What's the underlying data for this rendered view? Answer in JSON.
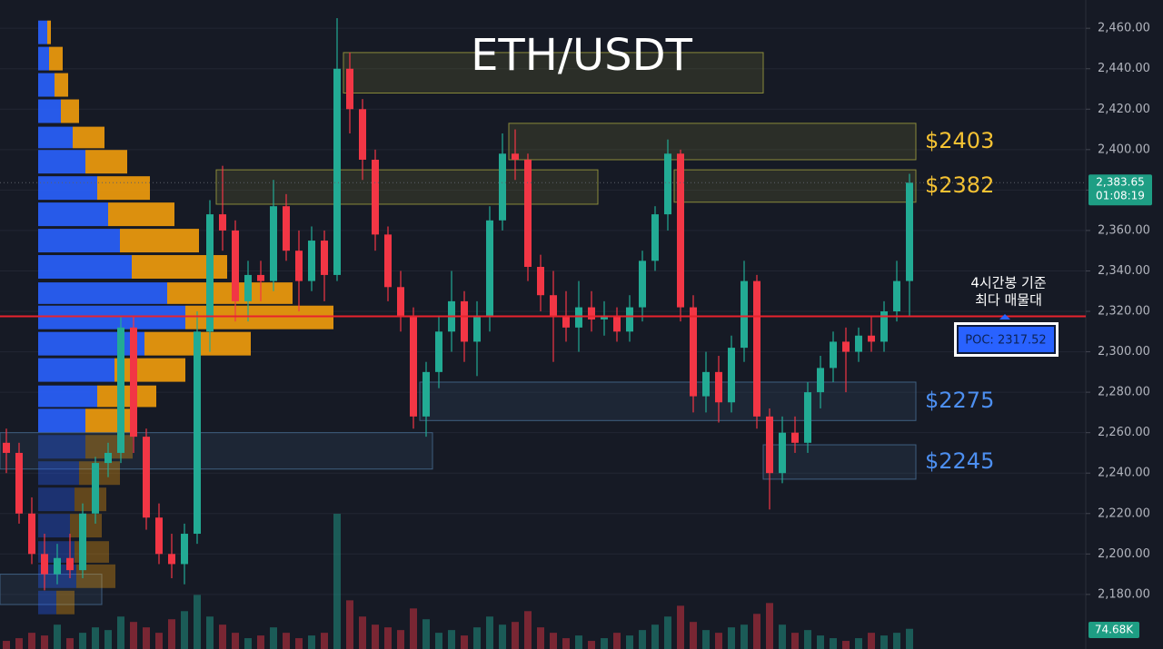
{
  "chart_data": {
    "type": "candlestick",
    "title": "ETH/USDT",
    "up_color": "#22ab94",
    "down_color": "#f23645",
    "ylim": [
      2153,
      2474
    ],
    "yticks": [
      {
        "value": 2180,
        "label": "2,180.00"
      },
      {
        "value": 2200,
        "label": "2,200.00"
      },
      {
        "value": 2220,
        "label": "2,220.00"
      },
      {
        "value": 2240,
        "label": "2,240.00"
      },
      {
        "value": 2260,
        "label": "2,260.00"
      },
      {
        "value": 2280,
        "label": "2,280.00"
      },
      {
        "value": 2300,
        "label": "2,300.00"
      },
      {
        "value": 2320,
        "label": "2,320.00"
      },
      {
        "value": 2340,
        "label": "2,340.00"
      },
      {
        "value": 2360,
        "label": "2,360.00"
      },
      {
        "value": 2380,
        "label": "2,380.00"
      },
      {
        "value": 2400,
        "label": "2,400.00"
      },
      {
        "value": 2420,
        "label": "2,420.00"
      },
      {
        "value": 2440,
        "label": "2,440.00"
      },
      {
        "value": 2460,
        "label": "2,460.00"
      }
    ],
    "grid": true,
    "candles": [
      [
        2255,
        2262,
        2240,
        2250
      ],
      [
        2250,
        2255,
        2215,
        2220
      ],
      [
        2220,
        2228,
        2195,
        2200
      ],
      [
        2200,
        2210,
        2182,
        2190
      ],
      [
        2190,
        2205,
        2185,
        2198
      ],
      [
        2198,
        2210,
        2188,
        2192
      ],
      [
        2192,
        2225,
        2188,
        2220
      ],
      [
        2220,
        2248,
        2215,
        2245
      ],
      [
        2245,
        2255,
        2238,
        2250
      ],
      [
        2250,
        2318,
        2245,
        2312
      ],
      [
        2312,
        2318,
        2250,
        2258
      ],
      [
        2258,
        2262,
        2212,
        2218
      ],
      [
        2218,
        2225,
        2195,
        2200
      ],
      [
        2200,
        2210,
        2188,
        2195
      ],
      [
        2195,
        2215,
        2185,
        2210
      ],
      [
        2210,
        2320,
        2205,
        2310
      ],
      [
        2310,
        2375,
        2300,
        2368
      ],
      [
        2368,
        2392,
        2350,
        2360
      ],
      [
        2360,
        2365,
        2315,
        2325
      ],
      [
        2325,
        2345,
        2315,
        2338
      ],
      [
        2338,
        2345,
        2325,
        2335
      ],
      [
        2335,
        2385,
        2330,
        2372
      ],
      [
        2372,
        2378,
        2345,
        2350
      ],
      [
        2350,
        2360,
        2320,
        2335
      ],
      [
        2335,
        2362,
        2330,
        2355
      ],
      [
        2355,
        2360,
        2325,
        2338
      ],
      [
        2338,
        2465,
        2335,
        2440
      ],
      [
        2440,
        2448,
        2408,
        2420
      ],
      [
        2420,
        2425,
        2385,
        2395
      ],
      [
        2395,
        2400,
        2350,
        2358
      ],
      [
        2358,
        2362,
        2325,
        2332
      ],
      [
        2332,
        2340,
        2310,
        2318
      ],
      [
        2318,
        2322,
        2262,
        2268
      ],
      [
        2268,
        2295,
        2258,
        2290
      ],
      [
        2290,
        2318,
        2282,
        2310
      ],
      [
        2310,
        2340,
        2300,
        2325
      ],
      [
        2325,
        2330,
        2295,
        2305
      ],
      [
        2305,
        2325,
        2288,
        2318
      ],
      [
        2318,
        2372,
        2310,
        2365
      ],
      [
        2365,
        2408,
        2360,
        2398
      ],
      [
        2398,
        2410,
        2385,
        2395
      ],
      [
        2395,
        2398,
        2335,
        2342
      ],
      [
        2342,
        2348,
        2320,
        2328
      ],
      [
        2328,
        2340,
        2295,
        2318
      ],
      [
        2318,
        2330,
        2305,
        2312
      ],
      [
        2312,
        2335,
        2300,
        2322
      ],
      [
        2322,
        2330,
        2310,
        2316
      ],
      [
        2316,
        2325,
        2308,
        2318
      ],
      [
        2318,
        2322,
        2305,
        2310
      ],
      [
        2310,
        2328,
        2305,
        2322
      ],
      [
        2322,
        2350,
        2315,
        2345
      ],
      [
        2345,
        2372,
        2340,
        2368
      ],
      [
        2368,
        2405,
        2360,
        2398
      ],
      [
        2398,
        2400,
        2315,
        2322
      ],
      [
        2322,
        2328,
        2270,
        2278
      ],
      [
        2278,
        2300,
        2270,
        2290
      ],
      [
        2290,
        2298,
        2265,
        2275
      ],
      [
        2275,
        2308,
        2270,
        2302
      ],
      [
        2302,
        2345,
        2295,
        2335
      ],
      [
        2335,
        2338,
        2262,
        2268
      ],
      [
        2268,
        2272,
        2222,
        2240
      ],
      [
        2240,
        2268,
        2235,
        2260
      ],
      [
        2260,
        2268,
        2250,
        2255
      ],
      [
        2255,
        2285,
        2250,
        2280
      ],
      [
        2280,
        2298,
        2272,
        2292
      ],
      [
        2292,
        2310,
        2285,
        2305
      ],
      [
        2305,
        2312,
        2280,
        2300
      ],
      [
        2300,
        2312,
        2295,
        2308
      ],
      [
        2308,
        2318,
        2300,
        2305
      ],
      [
        2305,
        2325,
        2300,
        2320
      ],
      [
        2320,
        2345,
        2315,
        2335
      ],
      [
        2335,
        2388,
        2318,
        2383.65
      ]
    ],
    "volume": {
      "ylim": [
        0,
        2400
      ],
      "values": [
        30,
        40,
        60,
        50,
        90,
        40,
        60,
        80,
        70,
        120,
        100,
        80,
        60,
        110,
        140,
        200,
        120,
        90,
        60,
        40,
        50,
        80,
        60,
        40,
        50,
        60,
        500,
        180,
        120,
        90,
        80,
        70,
        150,
        110,
        60,
        70,
        50,
        80,
        120,
        90,
        100,
        140,
        80,
        60,
        40,
        50,
        30,
        40,
        60,
        50,
        70,
        90,
        120,
        160,
        100,
        70,
        60,
        80,
        90,
        130,
        170,
        90,
        60,
        70,
        50,
        40,
        30,
        40,
        60,
        50,
        60,
        74.68
      ],
      "last_label": "74.68K"
    },
    "volume_profile": {
      "buy_color": "#2962ff",
      "sell_color": "#f29d0c",
      "prices": [
        2458,
        2445,
        2432,
        2419,
        2406,
        2394,
        2381,
        2368,
        2355,
        2342,
        2329,
        2317,
        2304,
        2291,
        2278,
        2266,
        2253,
        2240,
        2227,
        2214,
        2201,
        2189,
        2176
      ],
      "buy": [
        10,
        12,
        18,
        25,
        38,
        52,
        65,
        77,
        90,
        103,
        142,
        162,
        117,
        84,
        65,
        52,
        52,
        45,
        40,
        35,
        40,
        42,
        20
      ],
      "sell": [
        4,
        15,
        15,
        20,
        35,
        46,
        58,
        73,
        87,
        105,
        138,
        163,
        117,
        78,
        65,
        52,
        52,
        45,
        35,
        35,
        38,
        43,
        20
      ]
    },
    "zones": [
      {
        "low": 2428,
        "high": 2448,
        "start": 27,
        "end": 59,
        "color": "#8a8a3a"
      },
      {
        "low": 2395,
        "high": 2413,
        "start": 40,
        "end": 71,
        "color": "#8a8a3a",
        "label": "$2403",
        "label_color": "#f5c233"
      },
      {
        "low": 2373,
        "high": 2390,
        "start": 17,
        "end": 46,
        "color": "#8a8a3a"
      },
      {
        "low": 2374,
        "high": 2390,
        "start": 53,
        "end": 71,
        "color": "#8a8a3a",
        "label": "$2382",
        "label_color": "#f5c233"
      },
      {
        "low": 2266,
        "high": 2285,
        "start": 33,
        "end": 71,
        "color": "#3f5f80",
        "label": "$2275",
        "label_color": "#4d8ff0"
      },
      {
        "low": 2237,
        "high": 2254,
        "start": 60,
        "end": 71,
        "color": "#3f5f80",
        "label": "$2245",
        "label_color": "#4d8ff0"
      },
      {
        "low": 2242,
        "high": 2260,
        "start": 0,
        "end": 33,
        "color": "#3f5f80"
      },
      {
        "low": 2175,
        "high": 2190,
        "start": 0,
        "end": 7,
        "color": "#3f5f80"
      }
    ],
    "current_price": {
      "value": 2383.65,
      "label": "2,383.65",
      "countdown": "01:08:19",
      "color": "#1e9e84"
    },
    "poc": {
      "value": 2317.52,
      "label": "POC: 2317.52",
      "color": "#e8232d"
    },
    "annotation": [
      "4시간봉 기준",
      "최다 매물대"
    ]
  }
}
